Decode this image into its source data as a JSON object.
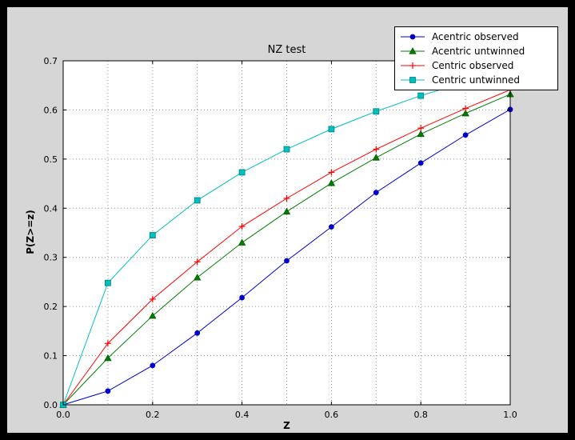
{
  "window": {
    "frame_color": "#000000",
    "figure_bg": "#d6d6d6",
    "plot_bg": "#ffffff",
    "grid_color": "#999999",
    "axis_color": "#000000"
  },
  "chart_data": {
    "type": "line",
    "title": "NZ test",
    "xlabel": "Z",
    "ylabel": "P(Z>=z)",
    "xlim": [
      0.0,
      1.0
    ],
    "ylim": [
      0.0,
      0.7
    ],
    "grid": true,
    "legend_position": "top-right",
    "xtick_values": [
      0.0,
      0.2,
      0.4,
      0.6,
      0.8,
      1.0
    ],
    "xtick_labels": [
      "0.0",
      "0.2",
      "0.4",
      "0.6",
      "0.8",
      "1.0"
    ],
    "xgrid_values": [
      0.0,
      0.1,
      0.2,
      0.3,
      0.4,
      0.5,
      0.6,
      0.7,
      0.8,
      0.9,
      1.0
    ],
    "ytick_values": [
      0.0,
      0.1,
      0.2,
      0.3,
      0.4,
      0.5,
      0.6,
      0.7
    ],
    "ytick_labels": [
      "0.0",
      "0.1",
      "0.2",
      "0.3",
      "0.4",
      "0.5",
      "0.6",
      "0.7"
    ],
    "x": [
      0.0,
      0.1,
      0.2,
      0.3,
      0.4,
      0.5,
      0.6,
      0.7,
      0.8,
      0.9,
      1.0
    ],
    "series": [
      {
        "name": "Acentric observed",
        "color": "#0000cc",
        "edge": "#0000cc",
        "marker": "circle",
        "values": [
          0.0,
          0.028,
          0.08,
          0.146,
          0.218,
          0.293,
          0.362,
          0.432,
          0.492,
          0.549,
          0.601
        ]
      },
      {
        "name": "Acentric untwinned",
        "color": "#007f00",
        "edge": "#005500",
        "marker": "triangle",
        "values": [
          0.0,
          0.095,
          0.181,
          0.259,
          0.33,
          0.393,
          0.451,
          0.503,
          0.551,
          0.593,
          0.632
        ]
      },
      {
        "name": "Centric observed",
        "color": "#ff0000",
        "edge": "#ff0000",
        "marker": "plus",
        "values": [
          0.0,
          0.125,
          0.215,
          0.291,
          0.363,
          0.42,
          0.473,
          0.52,
          0.563,
          0.603,
          0.641
        ]
      },
      {
        "name": "Centric untwinned",
        "color": "#00bfbf",
        "edge": "#007f7f",
        "marker": "square",
        "values": [
          0.0,
          0.248,
          0.345,
          0.416,
          0.473,
          0.52,
          0.561,
          0.597,
          0.629,
          0.657,
          0.683
        ]
      }
    ]
  }
}
